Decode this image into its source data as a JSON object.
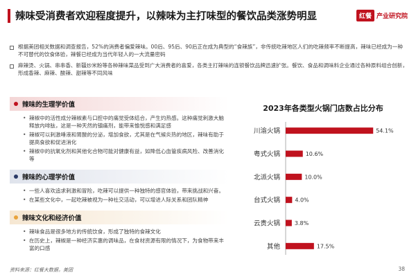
{
  "header": {
    "title": "辣味受消费者欢迎程度提升，以辣味为主打味型的餐饮品类涨势明显",
    "logo_mark": "红餐",
    "logo_text": "产业研究院"
  },
  "intro_bullets": [
    "根据美团相关数据和调查报告，52%的消费者偏爱辣味。00后、95后、90后正在成为典型的“食辣族”，非传统吃辣地区人们的吃辣频率不断提高，辣味已经成为一种不可替代的饮食体验，辣餐已经成为当代年轻人的一大流量密码",
    "麻辣烫、火锅、串串香、新疆炒米粉等各种辣味菜品受到广大消费者的喜爱，各类主打辣味的连锁餐饮品牌迅速扩张。餐饮、食品和调味料企业通过各种原料组合创新，形成香辣、麻辣、酸辣、甜辣等不同风味"
  ],
  "sections": [
    {
      "title": "辣味的生理学价值",
      "color": "#c0121e",
      "items": [
        "辣椒中的活性成分辣椒素与口腔中的痛觉受体结合，产生灼热感。这种痛觉刺激大脑释放内啡肽，这是一种天然的镇痛剂，能带来愉悦感和满足感",
        "辣椒可以刺激唾液和胃酸的分泌，增加食欲，尤其是在气候炎热的地区，辣味有助于提高食欲和促进消化",
        "辣椒中的抗氧化剂和其他化合物可能对健康有益，如降低心血管疾病风险、改善消化等"
      ]
    },
    {
      "title": "辣味的心理学价值",
      "color": "#2b3a67",
      "items": [
        "一些人喜欢追求刺激和冒险，吃辣可以提供一种独特的感官体验，带来挑战和兴奋。",
        "在某些文化中，一起吃辣被视为一种社交活动，可以增进人际关系和团队精神"
      ]
    },
    {
      "title": "辣味文化和经济价值",
      "color": "#e8a33d",
      "items": [
        "辣味食品是很多地方的传统饮食，形成了独特的食辣文化",
        "在历史上，辣椒是一种经济实惠的调味品，在食材资源有限的情况下，为食物带来丰富的口感"
      ]
    }
  ],
  "chart_data": {
    "type": "bar",
    "orientation": "horizontal",
    "title": "2023年各类型火锅门店数占比分布",
    "categories": [
      "川渝火锅",
      "粤式火锅",
      "北派火锅",
      "台式火锅",
      "云贵火锅",
      "其他"
    ],
    "values": [
      54.1,
      10.6,
      10.0,
      4.0,
      3.8,
      17.5
    ],
    "value_labels": [
      "54.1%",
      "10.6%",
      "10.0%",
      "4.0%",
      "3.8%",
      "17.5%"
    ],
    "xlim": [
      0,
      60
    ],
    "bar_color": "#c0121e",
    "grid": false
  },
  "footer": {
    "source": "资料来源：红餐大数据，美团",
    "page": "38"
  }
}
